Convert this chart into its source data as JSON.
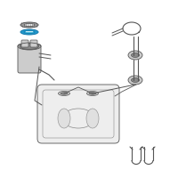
{
  "background_color": "#ffffff",
  "seal_blue": "#2299cc",
  "seal_blue_light": "#44bbdd",
  "dark": "#555555",
  "mid": "#888888",
  "light": "#cccccc",
  "very_light": "#eeeeee",
  "figsize": [
    2.0,
    2.0
  ],
  "dpi": 100
}
